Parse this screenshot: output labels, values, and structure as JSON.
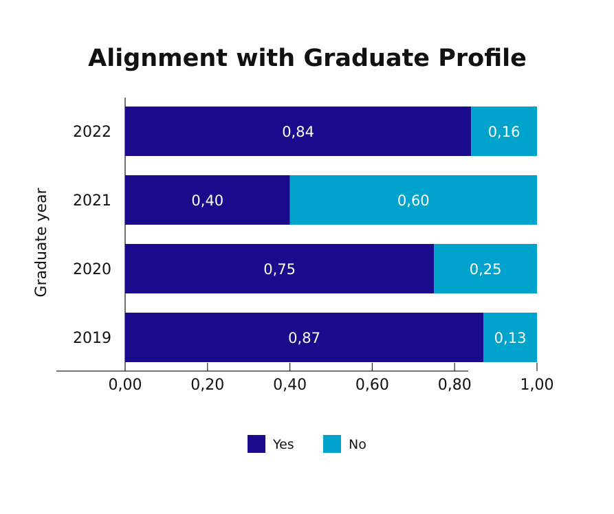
{
  "chart_data": {
    "type": "bar",
    "orientation": "horizontal",
    "stacked": true,
    "title": "Alignment with Graduate Profile",
    "xlabel": "",
    "ylabel": "Graduate year",
    "xlim": [
      0,
      1
    ],
    "xticks": [
      "0,00",
      "0,20",
      "0,40",
      "0,60",
      "0,80",
      "1,00"
    ],
    "xtick_values": [
      0,
      0.2,
      0.4,
      0.6,
      0.8,
      1.0
    ],
    "categories": [
      "2022",
      "2021",
      "2020",
      "2019"
    ],
    "series": [
      {
        "name": "Yes",
        "color": "#1a0b8c",
        "values": [
          0.84,
          0.4,
          0.75,
          0.87
        ],
        "labels": [
          "0,84",
          "0,40",
          "0,75",
          "0,87"
        ]
      },
      {
        "name": "No",
        "color": "#00a3cc",
        "values": [
          0.16,
          0.6,
          0.25,
          0.13
        ],
        "labels": [
          "0,16",
          "0,60",
          "0,25",
          "0,13"
        ]
      }
    ],
    "legend_position": "bottom",
    "grid": false
  }
}
